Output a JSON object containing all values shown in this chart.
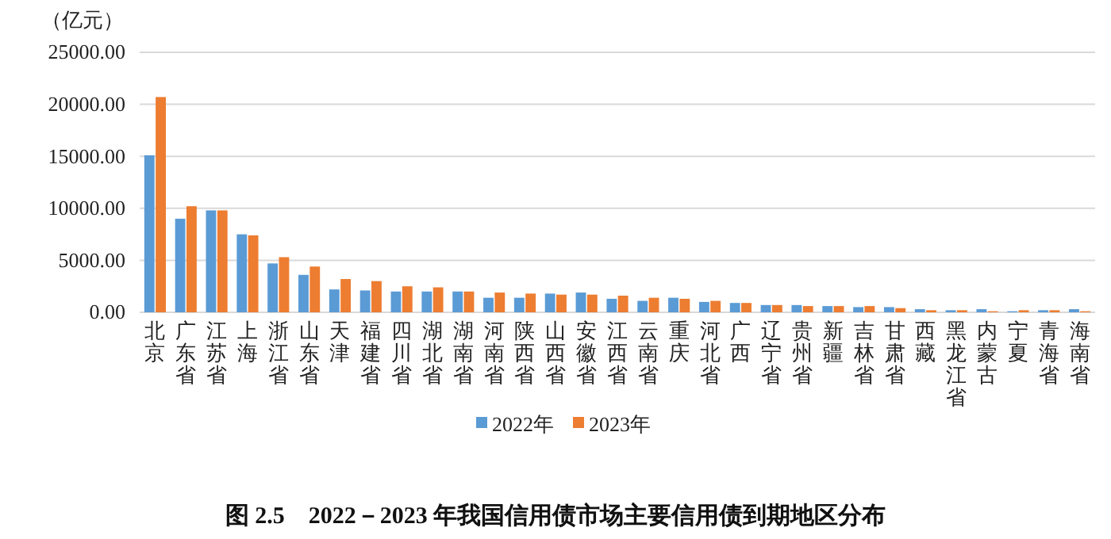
{
  "chart_data": {
    "type": "bar",
    "title": "图 2.5　2022－2023 年我国信用债市场主要信用债到期地区分布",
    "ylabel": "（亿元）",
    "categories": [
      "北京",
      "广东省",
      "江苏省",
      "上海",
      "浙江省",
      "山东省",
      "天津",
      "福建省",
      "四川省",
      "湖北省",
      "湖南省",
      "河南省",
      "陕西省",
      "山西省",
      "安徽省",
      "江西省",
      "云南省",
      "重庆",
      "河北省",
      "广西",
      "辽宁省",
      "贵州省",
      "新疆",
      "吉林省",
      "甘肃省",
      "西藏",
      "黑龙江省",
      "内蒙古",
      "宁夏",
      "青海省",
      "海南省"
    ],
    "series": [
      {
        "name": "2022年",
        "color": "#5b9bd5",
        "values": [
          15100,
          9000,
          9800,
          7500,
          4700,
          3600,
          2200,
          2100,
          2000,
          2000,
          2000,
          1400,
          1400,
          1800,
          1900,
          1300,
          1100,
          1400,
          1000,
          900,
          700,
          700,
          600,
          500,
          500,
          300,
          200,
          300,
          100,
          200,
          300
        ]
      },
      {
        "name": "2023年",
        "color": "#ed7d31",
        "values": [
          20700,
          10200,
          9800,
          7400,
          5300,
          4400,
          3200,
          3000,
          2500,
          2400,
          2000,
          1900,
          1800,
          1700,
          1700,
          1600,
          1400,
          1300,
          1100,
          900,
          700,
          600,
          600,
          600,
          400,
          200,
          200,
          100,
          200,
          200,
          100
        ]
      }
    ],
    "ylim": [
      0,
      25000
    ],
    "yticks": [
      {
        "value": 0,
        "label": "0.00"
      },
      {
        "value": 5000,
        "label": "5000.00"
      },
      {
        "value": 10000,
        "label": "10000.00"
      },
      {
        "value": 15000,
        "label": "15000.00"
      },
      {
        "value": 20000,
        "label": "20000.00"
      },
      {
        "value": 25000,
        "label": "25000.00"
      }
    ],
    "grid": "y",
    "legend": "bottom"
  }
}
